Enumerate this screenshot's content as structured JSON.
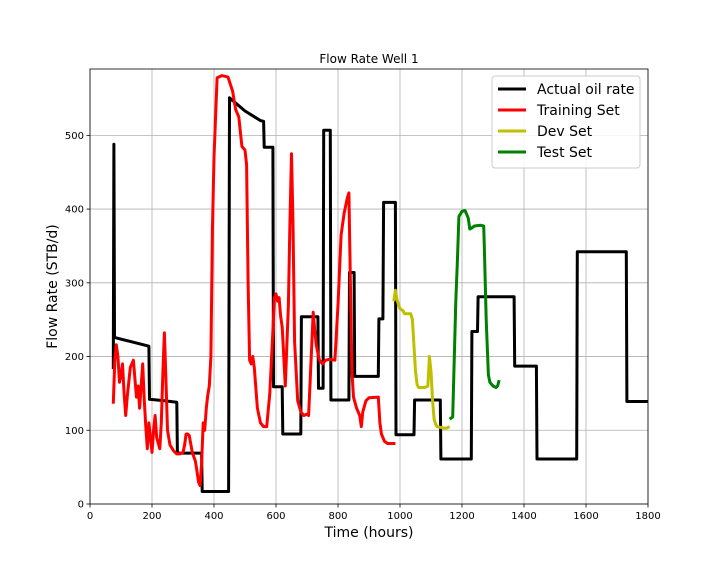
{
  "chart_data": {
    "type": "line",
    "title": "Flow Rate Well 1",
    "xlabel": "Time (hours)",
    "ylabel": "Flow Rate (STB/d)",
    "xlim": [
      0,
      1800
    ],
    "ylim": [
      0,
      590
    ],
    "xticks": [
      0,
      200,
      400,
      600,
      800,
      1000,
      1200,
      1400,
      1600,
      1800
    ],
    "yticks": [
      0,
      100,
      200,
      300,
      400,
      500
    ],
    "grid": true,
    "legend_position": "top-right",
    "series": [
      {
        "name": "Actual oil rate",
        "color": "#000000",
        "points": [
          [
            75,
            183
          ],
          [
            77,
            488
          ],
          [
            79,
            226
          ],
          [
            125,
            221
          ],
          [
            190,
            214
          ],
          [
            192,
            142
          ],
          [
            240,
            140
          ],
          [
            280,
            138
          ],
          [
            282,
            69
          ],
          [
            360,
            69
          ],
          [
            362,
            17
          ],
          [
            447,
            17
          ],
          [
            450,
            551
          ],
          [
            500,
            533
          ],
          [
            550,
            520
          ],
          [
            560,
            519
          ],
          [
            562,
            484
          ],
          [
            590,
            484
          ],
          [
            592,
            159
          ],
          [
            620,
            159
          ],
          [
            622,
            95
          ],
          [
            680,
            95
          ],
          [
            682,
            254
          ],
          [
            735,
            254
          ],
          [
            737,
            157
          ],
          [
            752,
            157
          ],
          [
            754,
            507
          ],
          [
            775,
            507
          ],
          [
            777,
            141
          ],
          [
            835,
            141
          ],
          [
            837,
            314
          ],
          [
            852,
            314
          ],
          [
            854,
            173
          ],
          [
            930,
            173
          ],
          [
            932,
            251
          ],
          [
            945,
            251
          ],
          [
            947,
            409
          ],
          [
            985,
            409
          ],
          [
            987,
            94
          ],
          [
            1045,
            94
          ],
          [
            1047,
            141
          ],
          [
            1130,
            141
          ],
          [
            1132,
            61
          ],
          [
            1230,
            61
          ],
          [
            1232,
            234
          ],
          [
            1250,
            234
          ],
          [
            1252,
            281
          ],
          [
            1368,
            281
          ],
          [
            1370,
            187
          ],
          [
            1440,
            187
          ],
          [
            1442,
            61
          ],
          [
            1570,
            61
          ],
          [
            1572,
            342
          ],
          [
            1730,
            342
          ],
          [
            1732,
            139
          ],
          [
            1800,
            139
          ]
        ]
      },
      {
        "name": "Training Set",
        "color": "#ff0000",
        "points": [
          [
            75,
            136
          ],
          [
            80,
            195
          ],
          [
            85,
            216
          ],
          [
            90,
            200
          ],
          [
            95,
            165
          ],
          [
            100,
            175
          ],
          [
            105,
            190
          ],
          [
            110,
            150
          ],
          [
            115,
            120
          ],
          [
            120,
            145
          ],
          [
            130,
            185
          ],
          [
            140,
            195
          ],
          [
            145,
            170
          ],
          [
            150,
            145
          ],
          [
            155,
            160
          ],
          [
            160,
            130
          ],
          [
            170,
            190
          ],
          [
            175,
            140
          ],
          [
            180,
            105
          ],
          [
            185,
            75
          ],
          [
            190,
            110
          ],
          [
            195,
            90
          ],
          [
            200,
            70
          ],
          [
            205,
            100
          ],
          [
            210,
            120
          ],
          [
            215,
            90
          ],
          [
            225,
            75
          ],
          [
            230,
            110
          ],
          [
            235,
            180
          ],
          [
            240,
            232
          ],
          [
            245,
            170
          ],
          [
            250,
            100
          ],
          [
            258,
            80
          ],
          [
            270,
            72
          ],
          [
            280,
            68
          ],
          [
            290,
            68
          ],
          [
            300,
            70
          ],
          [
            305,
            80
          ],
          [
            310,
            95
          ],
          [
            315,
            95
          ],
          [
            320,
            93
          ],
          [
            330,
            70
          ],
          [
            340,
            58
          ],
          [
            345,
            45
          ],
          [
            350,
            30
          ],
          [
            355,
            25
          ],
          [
            360,
            55
          ],
          [
            365,
            110
          ],
          [
            370,
            100
          ],
          [
            375,
            130
          ],
          [
            380,
            148
          ],
          [
            385,
            160
          ],
          [
            390,
            200
          ],
          [
            395,
            370
          ],
          [
            400,
            470
          ],
          [
            410,
            578
          ],
          [
            425,
            581
          ],
          [
            445,
            579
          ],
          [
            460,
            560
          ],
          [
            470,
            535
          ],
          [
            480,
            525
          ],
          [
            490,
            485
          ],
          [
            500,
            480
          ],
          [
            505,
            460
          ],
          [
            510,
            300
          ],
          [
            515,
            195
          ],
          [
            520,
            190
          ],
          [
            525,
            200
          ],
          [
            530,
            185
          ],
          [
            540,
            130
          ],
          [
            550,
            110
          ],
          [
            560,
            105
          ],
          [
            570,
            105
          ],
          [
            580,
            150
          ],
          [
            590,
            235
          ],
          [
            595,
            280
          ],
          [
            600,
            285
          ],
          [
            605,
            275
          ],
          [
            610,
            280
          ],
          [
            615,
            255
          ],
          [
            620,
            240
          ],
          [
            630,
            160
          ],
          [
            640,
            270
          ],
          [
            645,
            380
          ],
          [
            650,
            475
          ],
          [
            655,
            380
          ],
          [
            660,
            220
          ],
          [
            670,
            140
          ],
          [
            680,
            125
          ],
          [
            690,
            120
          ],
          [
            700,
            122
          ],
          [
            705,
            120
          ],
          [
            710,
            165
          ],
          [
            720,
            260
          ],
          [
            725,
            235
          ],
          [
            730,
            215
          ],
          [
            740,
            195
          ],
          [
            750,
            190
          ],
          [
            760,
            195
          ],
          [
            770,
            196
          ],
          [
            780,
            196
          ],
          [
            790,
            195
          ],
          [
            800,
            270
          ],
          [
            810,
            365
          ],
          [
            820,
            395
          ],
          [
            830,
            415
          ],
          [
            835,
            422
          ],
          [
            840,
            300
          ],
          [
            845,
            180
          ],
          [
            850,
            145
          ],
          [
            860,
            130
          ],
          [
            870,
            120
          ],
          [
            875,
            105
          ],
          [
            880,
            125
          ],
          [
            890,
            140
          ],
          [
            900,
            144
          ],
          [
            930,
            145
          ],
          [
            935,
            110
          ],
          [
            940,
            95
          ],
          [
            950,
            85
          ],
          [
            960,
            82
          ],
          [
            970,
            82
          ],
          [
            985,
            82
          ]
        ]
      },
      {
        "name": "Dev Set",
        "color": "#bfbf00",
        "points": [
          [
            980,
            275
          ],
          [
            985,
            290
          ],
          [
            990,
            278
          ],
          [
            995,
            270
          ],
          [
            1000,
            265
          ],
          [
            1010,
            262
          ],
          [
            1015,
            258
          ],
          [
            1025,
            258
          ],
          [
            1035,
            258
          ],
          [
            1040,
            250
          ],
          [
            1050,
            180
          ],
          [
            1055,
            162
          ],
          [
            1060,
            158
          ],
          [
            1065,
            158
          ],
          [
            1080,
            158
          ],
          [
            1090,
            160
          ],
          [
            1095,
            200
          ],
          [
            1100,
            180
          ],
          [
            1105,
            140
          ],
          [
            1110,
            115
          ],
          [
            1115,
            108
          ],
          [
            1120,
            105
          ],
          [
            1130,
            104
          ],
          [
            1140,
            103
          ],
          [
            1150,
            103
          ],
          [
            1160,
            105
          ]
        ]
      },
      {
        "name": "Test Set",
        "color": "#008000",
        "points": [
          [
            1160,
            115
          ],
          [
            1170,
            118
          ],
          [
            1180,
            275
          ],
          [
            1185,
            330
          ],
          [
            1190,
            390
          ],
          [
            1200,
            397
          ],
          [
            1210,
            398
          ],
          [
            1220,
            388
          ],
          [
            1225,
            373
          ],
          [
            1230,
            374
          ],
          [
            1240,
            377
          ],
          [
            1260,
            378
          ],
          [
            1270,
            377
          ],
          [
            1272,
            350
          ],
          [
            1278,
            250
          ],
          [
            1285,
            175
          ],
          [
            1290,
            165
          ],
          [
            1300,
            160
          ],
          [
            1310,
            158
          ],
          [
            1315,
            160
          ],
          [
            1320,
            168
          ]
        ]
      }
    ]
  }
}
